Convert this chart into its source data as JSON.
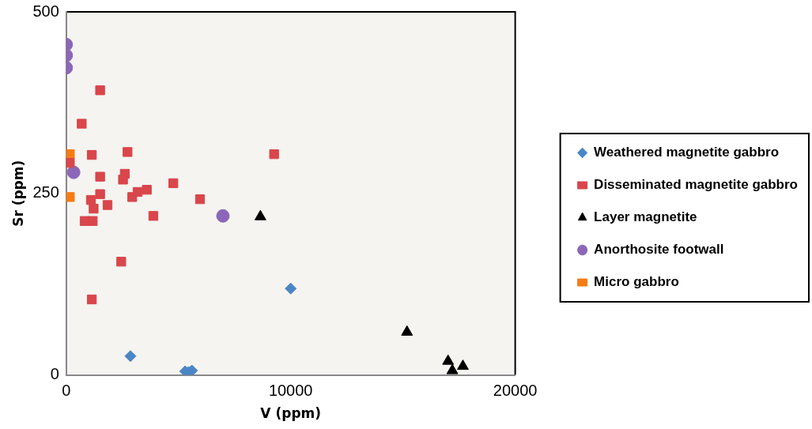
{
  "chart_data": {
    "type": "scatter",
    "xlabel": "V (ppm)",
    "ylabel": "Sr (ppm)",
    "xlim": [
      0,
      20000
    ],
    "xticks": [
      0,
      10000,
      20000
    ],
    "ylim": [
      0,
      500
    ],
    "yticks": [
      0,
      250,
      500
    ],
    "grid": false,
    "legend": "right",
    "series": [
      {
        "name": "Weathered magnetite gabbro",
        "color": "#4a86c5",
        "marker": "diamond",
        "x": [
          2860,
          10000,
          5300,
          5450,
          5600
        ],
        "values": [
          26,
          119,
          5,
          4,
          6
        ]
      },
      {
        "name": "Disseminated magnetite gabbro",
        "color": "#d9464b",
        "marker": "square",
        "x": [
          1510,
          690,
          1140,
          2730,
          9260,
          160,
          1510,
          2610,
          2530,
          4770,
          1510,
          1100,
          2940,
          3180,
          3590,
          5960,
          1840,
          1220,
          3880,
          820,
          1180,
          2450,
          1140
        ],
        "values": [
          392,
          346,
          303,
          307,
          304,
          292,
          273,
          277,
          269,
          264,
          249,
          241,
          245,
          252,
          255,
          242,
          234,
          229,
          219,
          212,
          212,
          156,
          104
        ]
      },
      {
        "name": "Layer magnetite",
        "color": "#000000",
        "marker": "triangle",
        "x": [
          8650,
          15180,
          17010,
          17200,
          17670
        ],
        "values": [
          218,
          59,
          19,
          6,
          12
        ]
      },
      {
        "name": "Anorthosite footwall",
        "color": "#8c66b8",
        "marker": "circle",
        "x": [
          0,
          0,
          0,
          330,
          6980
        ],
        "values": [
          455,
          440,
          423,
          279,
          219
        ]
      },
      {
        "name": "Micro gabbro",
        "color": "#f57c14",
        "marker": "square",
        "x": [
          160,
          160
        ],
        "values": [
          304,
          245
        ]
      }
    ]
  }
}
